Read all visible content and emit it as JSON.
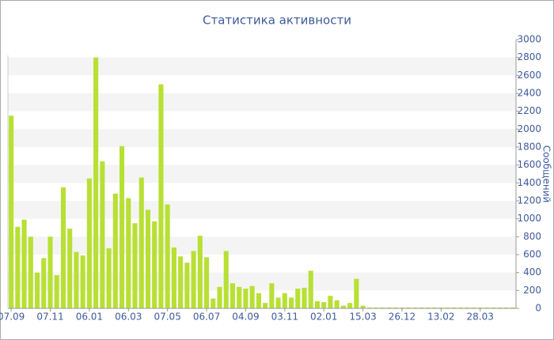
{
  "chart_data": {
    "type": "bar",
    "title": "Статистика активности",
    "y_label": "Сообщений",
    "categories": [
      "07.09",
      null,
      null,
      null,
      null,
      null,
      "07.11",
      null,
      null,
      null,
      null,
      null,
      "06.01",
      null,
      null,
      null,
      null,
      null,
      "06.03",
      null,
      null,
      null,
      null,
      null,
      "07.05",
      null,
      null,
      null,
      null,
      null,
      "06.07",
      null,
      null,
      null,
      null,
      null,
      "04.09",
      null,
      null,
      null,
      null,
      null,
      "03.11",
      null,
      null,
      null,
      null,
      null,
      "02.01",
      null,
      null,
      null,
      null,
      null,
      "15.03",
      null,
      null,
      null,
      null,
      null,
      "26.12",
      null,
      null,
      null,
      null,
      null,
      "13.02",
      null,
      null,
      null,
      null,
      null,
      "28.03",
      null,
      null,
      null,
      null,
      null
    ],
    "values": [
      2150,
      910,
      990,
      800,
      400,
      560,
      800,
      370,
      1350,
      890,
      630,
      590,
      1450,
      2800,
      1640,
      670,
      1280,
      1810,
      1230,
      950,
      1460,
      1100,
      970,
      2500,
      1160,
      680,
      580,
      510,
      640,
      810,
      570,
      110,
      240,
      640,
      280,
      240,
      220,
      250,
      170,
      60,
      280,
      120,
      170,
      120,
      220,
      230,
      420,
      80,
      70,
      140,
      90,
      30,
      60,
      330,
      30,
      10,
      10,
      10,
      10,
      10,
      10,
      10,
      10,
      10,
      10,
      10,
      10,
      10,
      10,
      10,
      10,
      10,
      10,
      10,
      10,
      10,
      10,
      10
    ],
    "color": "#b8e034",
    "ylim": [
      0,
      3000
    ],
    "yticks": [
      0,
      200,
      400,
      600,
      800,
      1000,
      1200,
      1400,
      1600,
      1800,
      2000,
      2200,
      2400,
      2600,
      2800,
      3000
    ],
    "grid": true
  }
}
